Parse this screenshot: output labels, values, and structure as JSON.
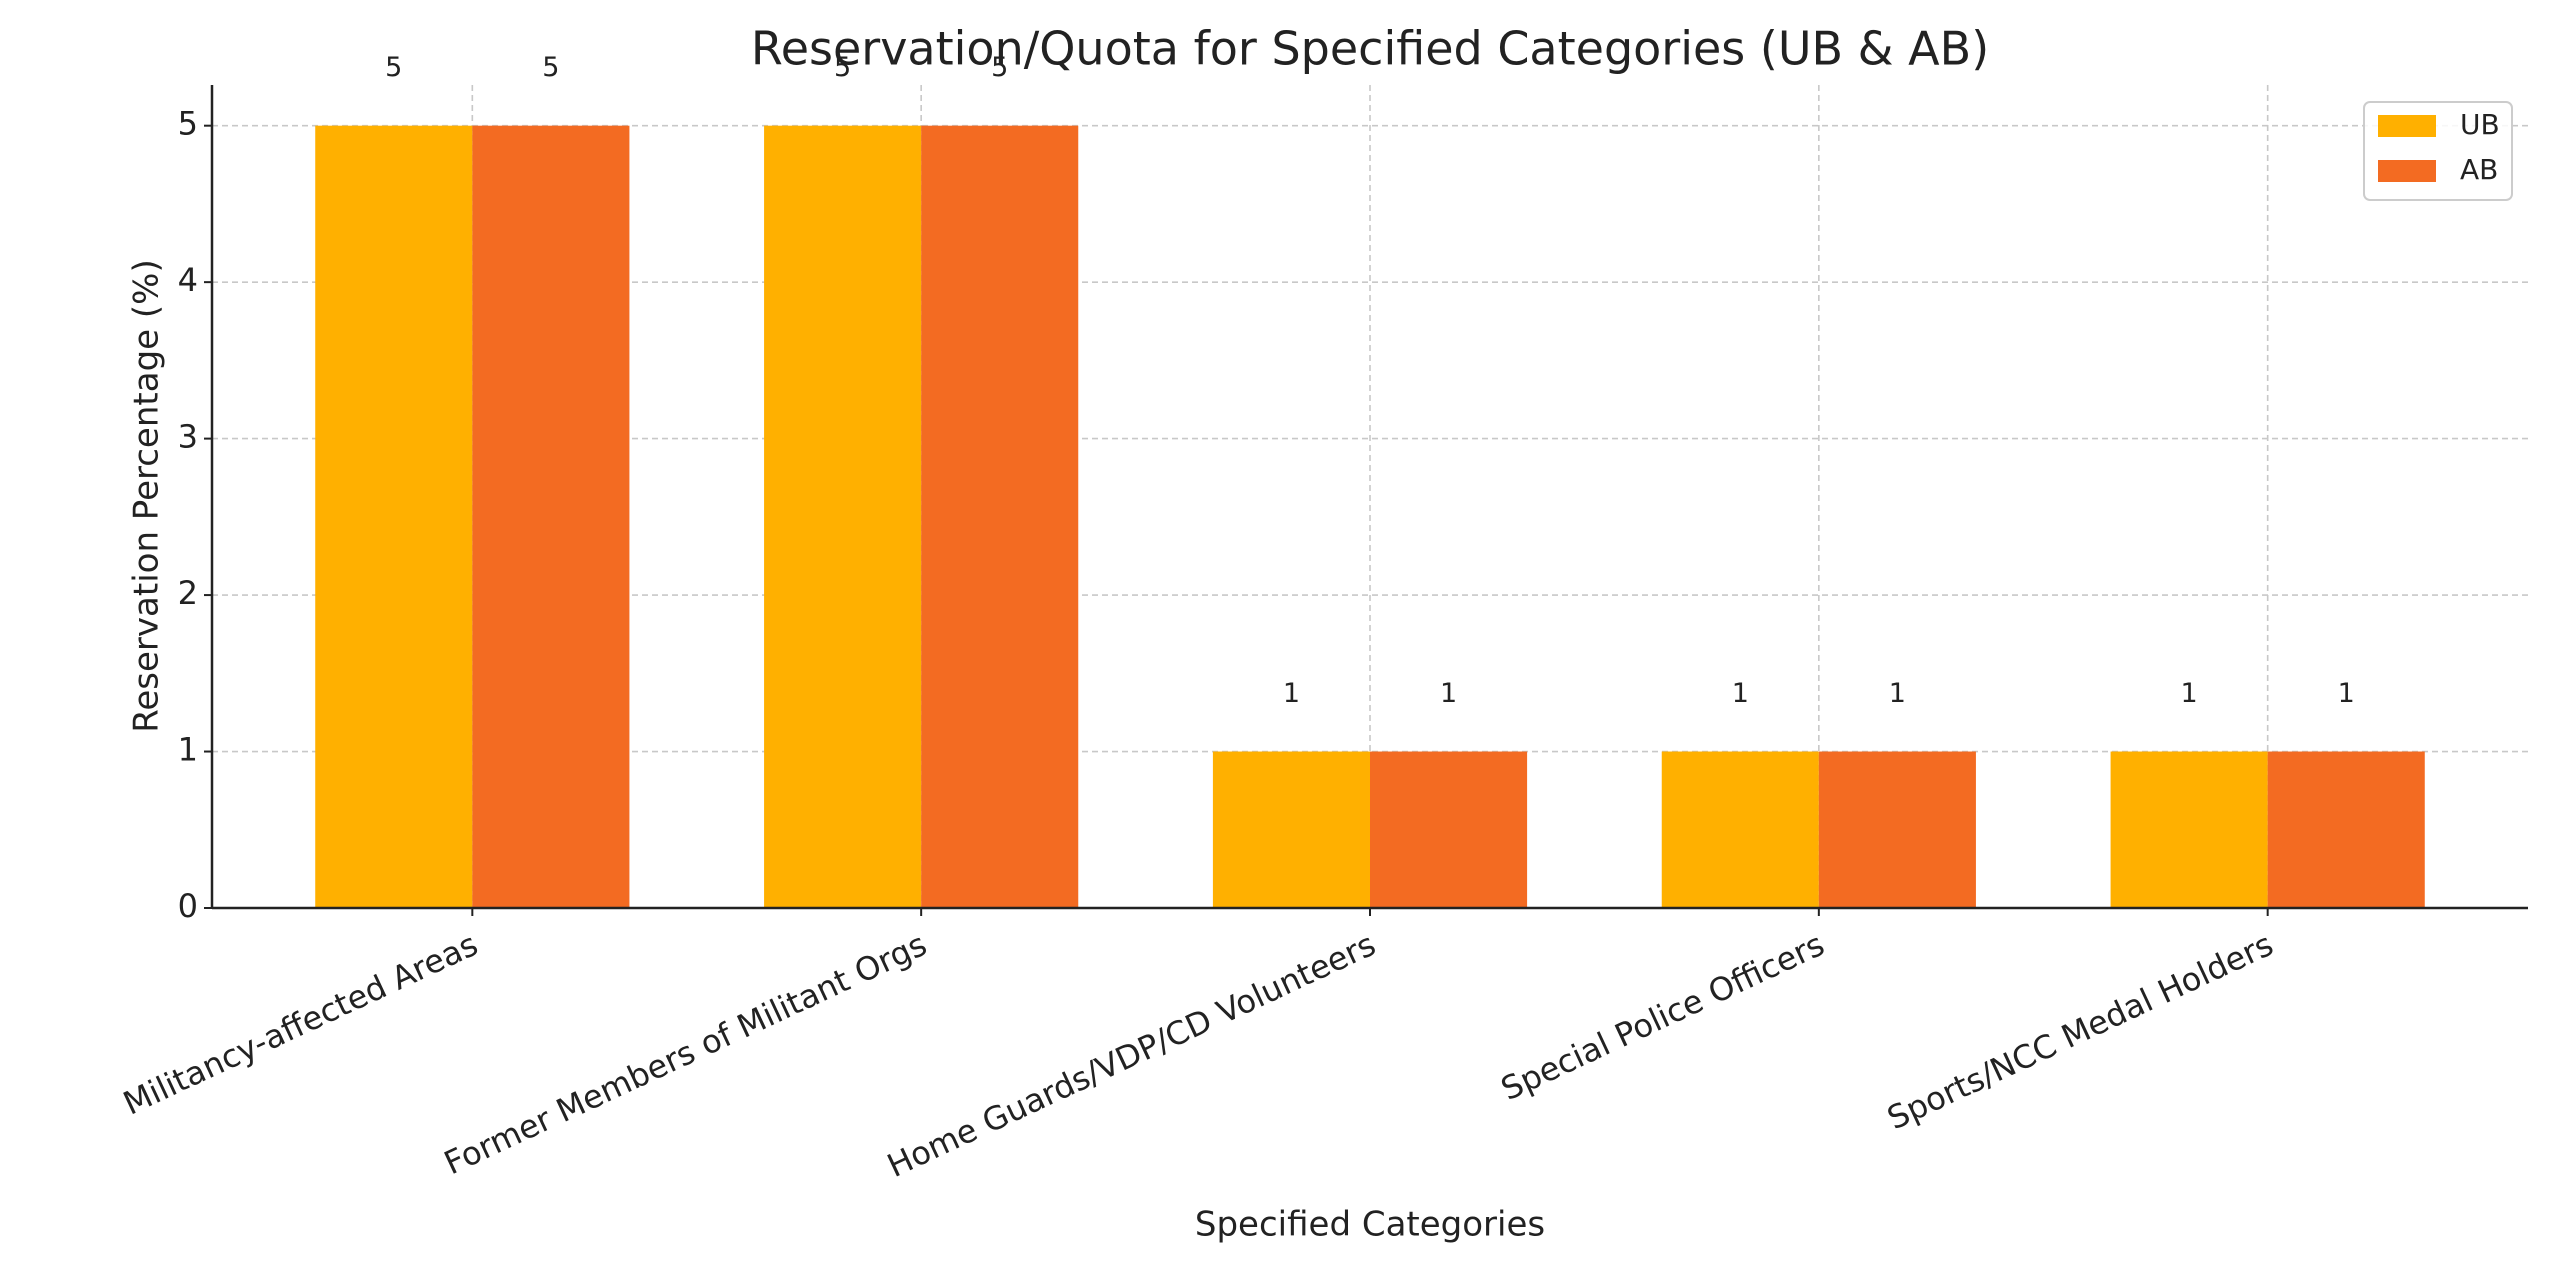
{
  "chart_data": {
    "type": "bar",
    "title": "Reservation/Quota for Specified Categories (UB & AB)",
    "x_label": "Specified Categories",
    "y_label": "Reservation Percentage (%)",
    "categories": [
      "Militancy-affected Areas",
      "Former Members of Militant Orgs",
      "Home Guards/VDP/CD Volunteers",
      "Special Police Officers",
      "Sports/NCC Medal Holders"
    ],
    "series": [
      {
        "name": "UB",
        "color": "#ffb000",
        "values": [
          5,
          5,
          1,
          1,
          1
        ]
      },
      {
        "name": "AB",
        "color": "#f36b22",
        "values": [
          5,
          5,
          1,
          1,
          1
        ]
      }
    ],
    "ylim": [
      0,
      5.26
    ],
    "yticks": [
      0,
      1,
      2,
      3,
      4,
      5
    ],
    "grid": true,
    "legend": "upper right"
  }
}
